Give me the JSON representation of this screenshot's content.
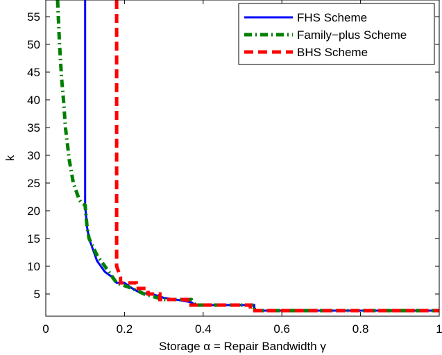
{
  "chart_data": {
    "type": "line",
    "title": "",
    "xlabel": "Storage α = Repair Bandwidth γ",
    "ylabel": "k",
    "xlim": [
      0,
      1
    ],
    "ylim": [
      1,
      58
    ],
    "xticks": [
      0,
      0.2,
      0.4,
      0.6,
      0.8,
      1
    ],
    "xtick_labels": [
      "0",
      "0.2",
      "0.4",
      "0.6",
      "0.8",
      "1"
    ],
    "yticks": [
      5,
      10,
      15,
      20,
      25,
      30,
      35,
      40,
      45,
      50,
      55
    ],
    "ytick_labels": [
      "5",
      "10",
      "15",
      "20",
      "25",
      "30",
      "35",
      "40",
      "45",
      "50",
      "55"
    ],
    "grid": false,
    "legend_position": "top-right",
    "series": [
      {
        "name": "FHS Scheme",
        "color": "#0000ff",
        "style": "solid",
        "points": [
          [
            0.1,
            58
          ],
          [
            0.1,
            21
          ],
          [
            0.105,
            17
          ],
          [
            0.11,
            15
          ],
          [
            0.115,
            14
          ],
          [
            0.12,
            13
          ],
          [
            0.125,
            12
          ],
          [
            0.13,
            11
          ],
          [
            0.135,
            10.5
          ],
          [
            0.14,
            10
          ],
          [
            0.15,
            9
          ],
          [
            0.16,
            8.5
          ],
          [
            0.17,
            8
          ],
          [
            0.18,
            7
          ],
          [
            0.2,
            7
          ],
          [
            0.22,
            6
          ],
          [
            0.24,
            5.2
          ],
          [
            0.27,
            5
          ],
          [
            0.3,
            4.3
          ],
          [
            0.33,
            4
          ],
          [
            0.37,
            3.5
          ],
          [
            0.38,
            3
          ],
          [
            0.53,
            3
          ],
          [
            0.53,
            2
          ],
          [
            1,
            2
          ]
        ]
      },
      {
        "name": "Family−plus Scheme",
        "color": "#008000",
        "style": "dashdot",
        "points": [
          [
            0.03,
            58
          ],
          [
            0.035,
            50
          ],
          [
            0.04,
            44
          ],
          [
            0.045,
            40
          ],
          [
            0.05,
            35
          ],
          [
            0.055,
            32
          ],
          [
            0.06,
            29
          ],
          [
            0.065,
            27
          ],
          [
            0.07,
            25
          ],
          [
            0.075,
            24
          ],
          [
            0.08,
            23
          ],
          [
            0.085,
            22
          ],
          [
            0.09,
            21.5
          ],
          [
            0.1,
            21
          ],
          [
            0.105,
            17
          ],
          [
            0.11,
            15
          ],
          [
            0.12,
            13.5
          ],
          [
            0.13,
            12
          ],
          [
            0.14,
            11
          ],
          [
            0.15,
            10
          ],
          [
            0.16,
            9
          ],
          [
            0.17,
            8
          ],
          [
            0.18,
            7
          ],
          [
            0.2,
            6.5
          ],
          [
            0.22,
            6
          ],
          [
            0.25,
            5
          ],
          [
            0.3,
            4
          ],
          [
            0.37,
            4
          ],
          [
            0.38,
            3
          ],
          [
            0.53,
            3
          ],
          [
            0.53,
            2
          ],
          [
            1,
            2
          ]
        ]
      },
      {
        "name": "BHS Scheme",
        "color": "#ff0000",
        "style": "dashed",
        "points": [
          [
            0.18,
            58
          ],
          [
            0.18,
            10
          ],
          [
            0.185,
            9
          ],
          [
            0.19,
            8
          ],
          [
            0.19,
            7
          ],
          [
            0.23,
            7
          ],
          [
            0.23,
            6
          ],
          [
            0.26,
            6
          ],
          [
            0.26,
            5
          ],
          [
            0.29,
            5
          ],
          [
            0.29,
            4
          ],
          [
            0.36,
            4
          ],
          [
            0.36,
            3
          ],
          [
            0.52,
            3
          ],
          [
            0.52,
            2
          ],
          [
            1,
            2
          ]
        ]
      }
    ]
  }
}
